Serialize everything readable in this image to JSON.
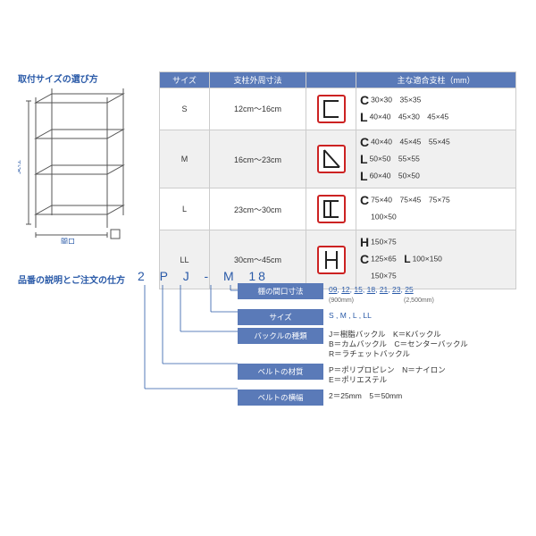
{
  "headings": {
    "size_select": "取付サイズの選び方",
    "code_desc": "品番の説明とご注文の仕方"
  },
  "shelf_labels": {
    "height": "支柱",
    "width": "間口"
  },
  "size_table": {
    "headers": [
      "サイズ",
      "支柱外周寸法",
      "",
      "主な適合支柱（mm）"
    ],
    "rows": [
      {
        "size": "S",
        "range": "12cm〜16cm",
        "icon": "C",
        "fit_html": "<span class='bracket'>C</span>30×30　35×35<br><span class='bracket'>L</span>40×40　45×30　45×45"
      },
      {
        "size": "M",
        "range": "16cm〜23cm",
        "icon": "L",
        "fit_html": "<span class='bracket'>C</span>40×40　45×45　55×45<br><span class='bracket'>L</span>50×50　55×55<br><span class='bracket'>L</span>60×40　50×50"
      },
      {
        "size": "L",
        "range": "23cm〜30cm",
        "icon": "C2",
        "fit_html": "<span class='bracket'>C</span>75×40　75×45　75×75<br><span style='visibility:hidden' class='bracket'>C</span>100×50"
      },
      {
        "size": "LL",
        "range": "30cm〜45cm",
        "icon": "H",
        "fit_html": "<span class='bracket'>H</span>150×75<br><span class='bracket'>C</span>125×65　<span class='bracket' style='font-size:12px'>L</span>100×150<br><span style='visibility:hidden' class='bracket'>C</span>150×75"
      }
    ]
  },
  "code": {
    "parts": [
      "2",
      "P",
      "J",
      "-",
      "M",
      "18"
    ]
  },
  "desc_rows": [
    {
      "label": "棚の間口寸法",
      "val": "<a>09</a>, <a>12</a>, <a>15</a>, <a>18</a>, <a>21</a>, <a>23</a>, <a>25</a><br><span class='sub'>(900mm)　　　　　　　　(2,500mm)</span>",
      "color": "link"
    },
    {
      "label": "サイズ",
      "val": "S , M , L , LL",
      "color": "link"
    },
    {
      "label": "バックルの種類",
      "val": "J＝樹脂バックル　K＝Kバックル<br>B＝カムバックル　C＝センターバックル<br>R＝ラチェットバックル",
      "color": "black"
    },
    {
      "label": "ベルトの材質",
      "val": "P＝ポリプロピレン　N＝ナイロン<br>E＝ポリエステル",
      "color": "black"
    },
    {
      "label": "ベルトの横幅",
      "val": "2＝25mm　5＝50mm",
      "color": "black"
    }
  ],
  "colors": {
    "blue": "#2a5aa8",
    "header_bg": "#5a7ab8",
    "red": "#c22",
    "border": "#ccc"
  }
}
